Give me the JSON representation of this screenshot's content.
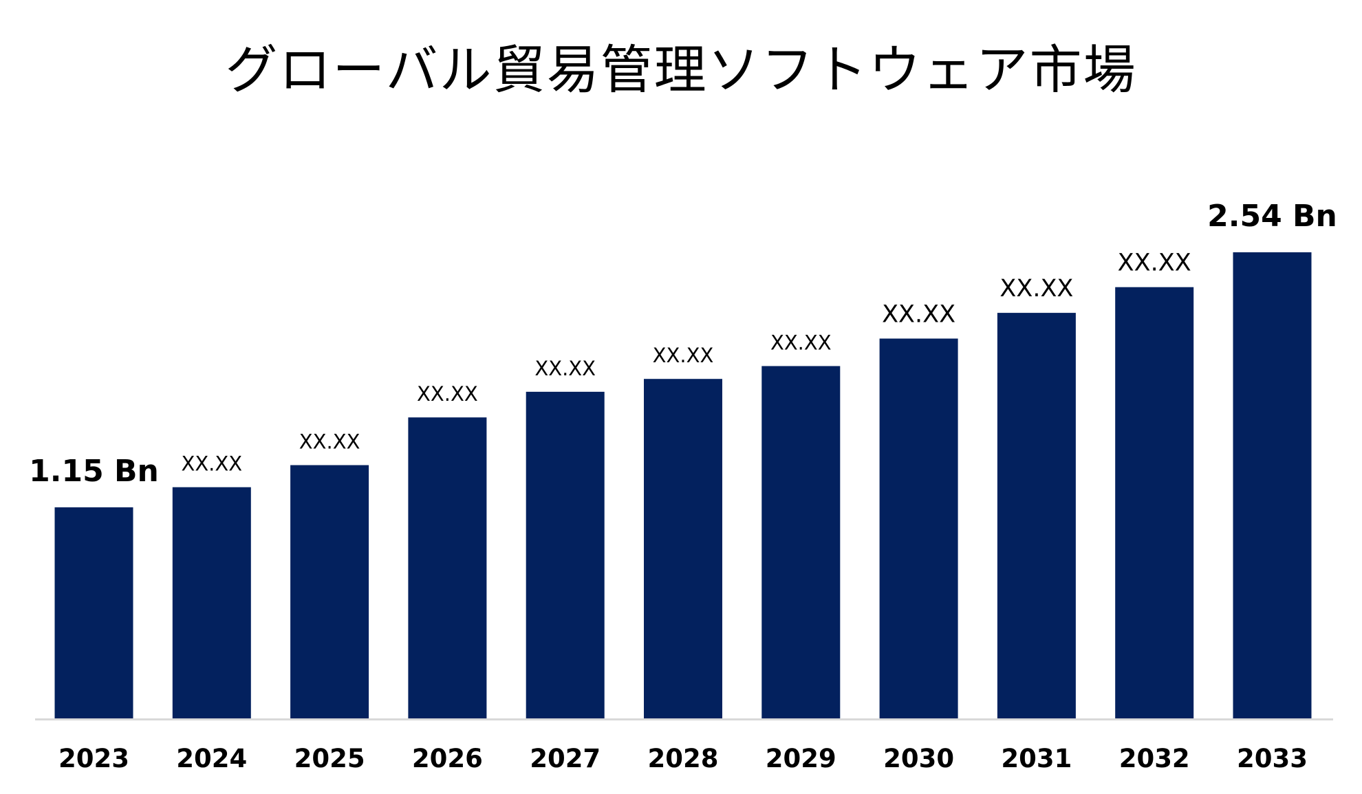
{
  "chart_data": {
    "type": "bar",
    "title": "グローバル貿易管理ソフトウェア市場",
    "xlabel": "",
    "ylabel": "",
    "categories": [
      "2023",
      "2024",
      "2025",
      "2026",
      "2027",
      "2028",
      "2029",
      "2030",
      "2031",
      "2032",
      "2033"
    ],
    "values": [
      1.15,
      1.26,
      1.38,
      1.64,
      1.78,
      1.85,
      1.92,
      2.07,
      2.21,
      2.35,
      2.54
    ],
    "value_labels": [
      "1.15 Bn",
      "XX.XX",
      "XX.XX",
      "XX.XX",
      "XX.XX",
      "XX.XX",
      "XX.XX",
      "XX.XX",
      "XX.XX",
      "XX.XX",
      "2.54 Bn"
    ],
    "ylim": [
      0,
      2.54
    ],
    "grid": false,
    "legend": "none",
    "colors": {
      "bar": "#03215E",
      "axis": "#D9D9D9",
      "text": "#000000"
    }
  }
}
